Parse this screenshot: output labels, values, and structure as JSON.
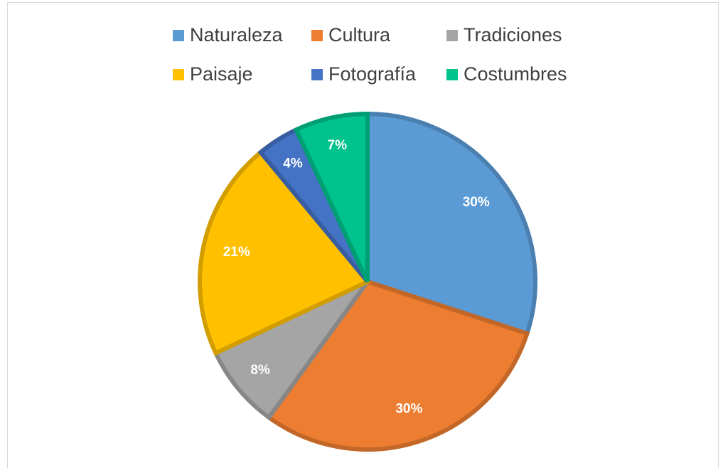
{
  "chart_data": {
    "type": "pie",
    "categories": [
      "Naturaleza",
      "Cultura",
      "Tradiciones",
      "Paisaje",
      "Fotografía",
      "Costumbres"
    ],
    "values": [
      30,
      30,
      8,
      21,
      4,
      7
    ],
    "value_labels": [
      "30%",
      "30%",
      "8%",
      "21%",
      "4%",
      "7%"
    ],
    "colors": [
      "#5b9bd5",
      "#ed7d31",
      "#a5a5a5",
      "#ffc000",
      "#4472c4",
      "#00c28c"
    ],
    "legend": "top"
  }
}
